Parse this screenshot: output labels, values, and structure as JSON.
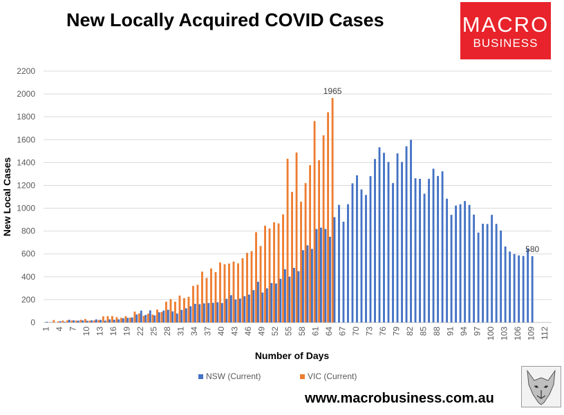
{
  "title": "New Locally Acquired COVID Cases",
  "logo": {
    "line1": "MACRO",
    "line2": "BUSINESS"
  },
  "website": "www.macrobusiness.com.au",
  "legend": {
    "nsw": "NSW (Current)",
    "vic": "VIC (Current)"
  },
  "colors": {
    "nsw": "#4472c4",
    "vic": "#ed7d31",
    "grid": "#d9d9d9",
    "logo": "#e8232b"
  },
  "chart_data": {
    "type": "bar",
    "title": "New Locally Acquired COVID Cases",
    "xlabel": "Number of Days",
    "ylabel": "New Local Cases",
    "ylim": [
      0,
      2200
    ],
    "yticks": [
      0,
      200,
      400,
      600,
      800,
      1000,
      1200,
      1400,
      1600,
      1800,
      2000,
      2200
    ],
    "x_count": 113,
    "xticks": [
      1,
      4,
      7,
      10,
      13,
      16,
      19,
      22,
      25,
      28,
      31,
      34,
      37,
      40,
      43,
      46,
      49,
      52,
      55,
      58,
      61,
      64,
      67,
      70,
      73,
      76,
      79,
      82,
      85,
      88,
      91,
      94,
      97,
      100,
      103,
      106,
      109,
      112
    ],
    "grid": true,
    "legend_position": "bottom",
    "series": [
      {
        "name": "NSW (Current)",
        "values": [
          6,
          3,
          0,
          10,
          6,
          24,
          19,
          16,
          18,
          15,
          19,
          27,
          23,
          16,
          27,
          24,
          27,
          37,
          40,
          44,
          70,
          104,
          66,
          106,
          62,
          89,
          105,
          111,
          97,
          78,
          110,
          124,
          142,
          163,
          160,
          167,
          170,
          172,
          177,
          170,
          207,
          239,
          201,
          209,
          230,
          244,
          283,
          356,
          262,
          299,
          345,
          341,
          382,
          466,
          402,
          478,
          449,
          633,
          675,
          644,
          818,
          830,
          818,
          750,
          922,
          1029,
          882,
          1035,
          1218,
          1288,
          1164,
          1116,
          1281,
          1431,
          1533,
          1485,
          1405,
          1220,
          1480,
          1405,
          1542,
          1599,
          1262,
          1257,
          1127,
          1257,
          1346,
          1282,
          1323,
          1083,
          942,
          1023,
          1035,
          1063,
          1029,
          944,
          787,
          864,
          862,
          942,
          863,
          805,
          665,
          621,
          599,
          587,
          582,
          646,
          580
        ]
      },
      {
        "name": "VIC (Current)",
        "values": [
          0,
          2,
          21,
          10,
          17,
          18,
          17,
          16,
          23,
          30,
          16,
          18,
          22,
          53,
          55,
          56,
          46,
          41,
          55,
          43,
          95,
          79,
          58,
          77,
          69,
          113,
          92,
          182,
          204,
          182,
          235,
          213,
          225,
          320,
          330,
          445,
          390,
          473,
          441,
          525,
          510,
          516,
          533,
          517,
          562,
          609,
          624,
          790,
          669,
          847,
          823,
          877,
          867,
          946,
          1433,
          1143,
          1488,
          1057,
          1220,
          1377,
          1763,
          1420,
          1638,
          1840,
          1965
        ]
      }
    ],
    "data_labels": [
      {
        "series": "VIC (Current)",
        "x": 65,
        "text": "1965"
      },
      {
        "series": "NSW (Current)",
        "x": 109,
        "text": "580"
      }
    ]
  }
}
